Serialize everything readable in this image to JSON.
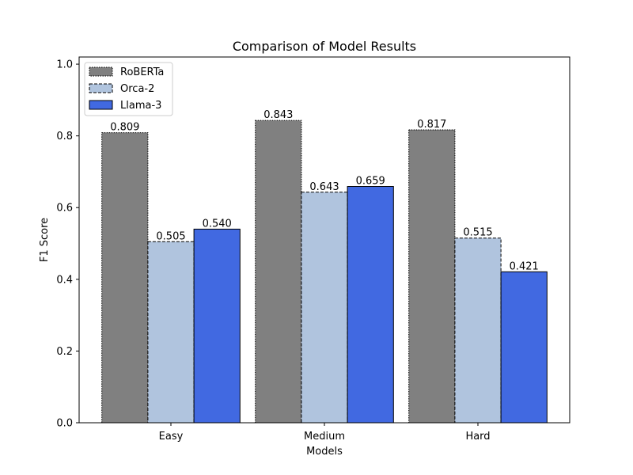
{
  "chart_data": {
    "type": "bar",
    "title": "Comparison of Model Results",
    "xlabel": "Models",
    "ylabel": "F1 Score",
    "categories": [
      "Easy",
      "Medium",
      "Hard"
    ],
    "series": [
      {
        "name": "RoBERTa",
        "values": [
          0.809,
          0.843,
          0.817
        ],
        "color": "#808080",
        "edge_style": "dotted"
      },
      {
        "name": "Orca-2",
        "values": [
          0.505,
          0.643,
          0.515
        ],
        "color": "#b0c4de",
        "edge_style": "dashed"
      },
      {
        "name": "Llama-3",
        "values": [
          0.54,
          0.659,
          0.421
        ],
        "color": "#4169e1",
        "edge_style": "solid"
      }
    ],
    "data_labels": [
      [
        "0.809",
        "0.843",
        "0.817"
      ],
      [
        "0.505",
        "0.643",
        "0.515"
      ],
      [
        "0.540",
        "0.659",
        "0.421"
      ]
    ],
    "ylim": [
      0,
      1.02
    ],
    "yticks": [
      0.0,
      0.2,
      0.4,
      0.6,
      0.8,
      1.0
    ],
    "ytick_labels": [
      "0.0",
      "0.2",
      "0.4",
      "0.6",
      "0.8",
      "1.0"
    ],
    "legend_position": "top-left",
    "grid": false
  }
}
